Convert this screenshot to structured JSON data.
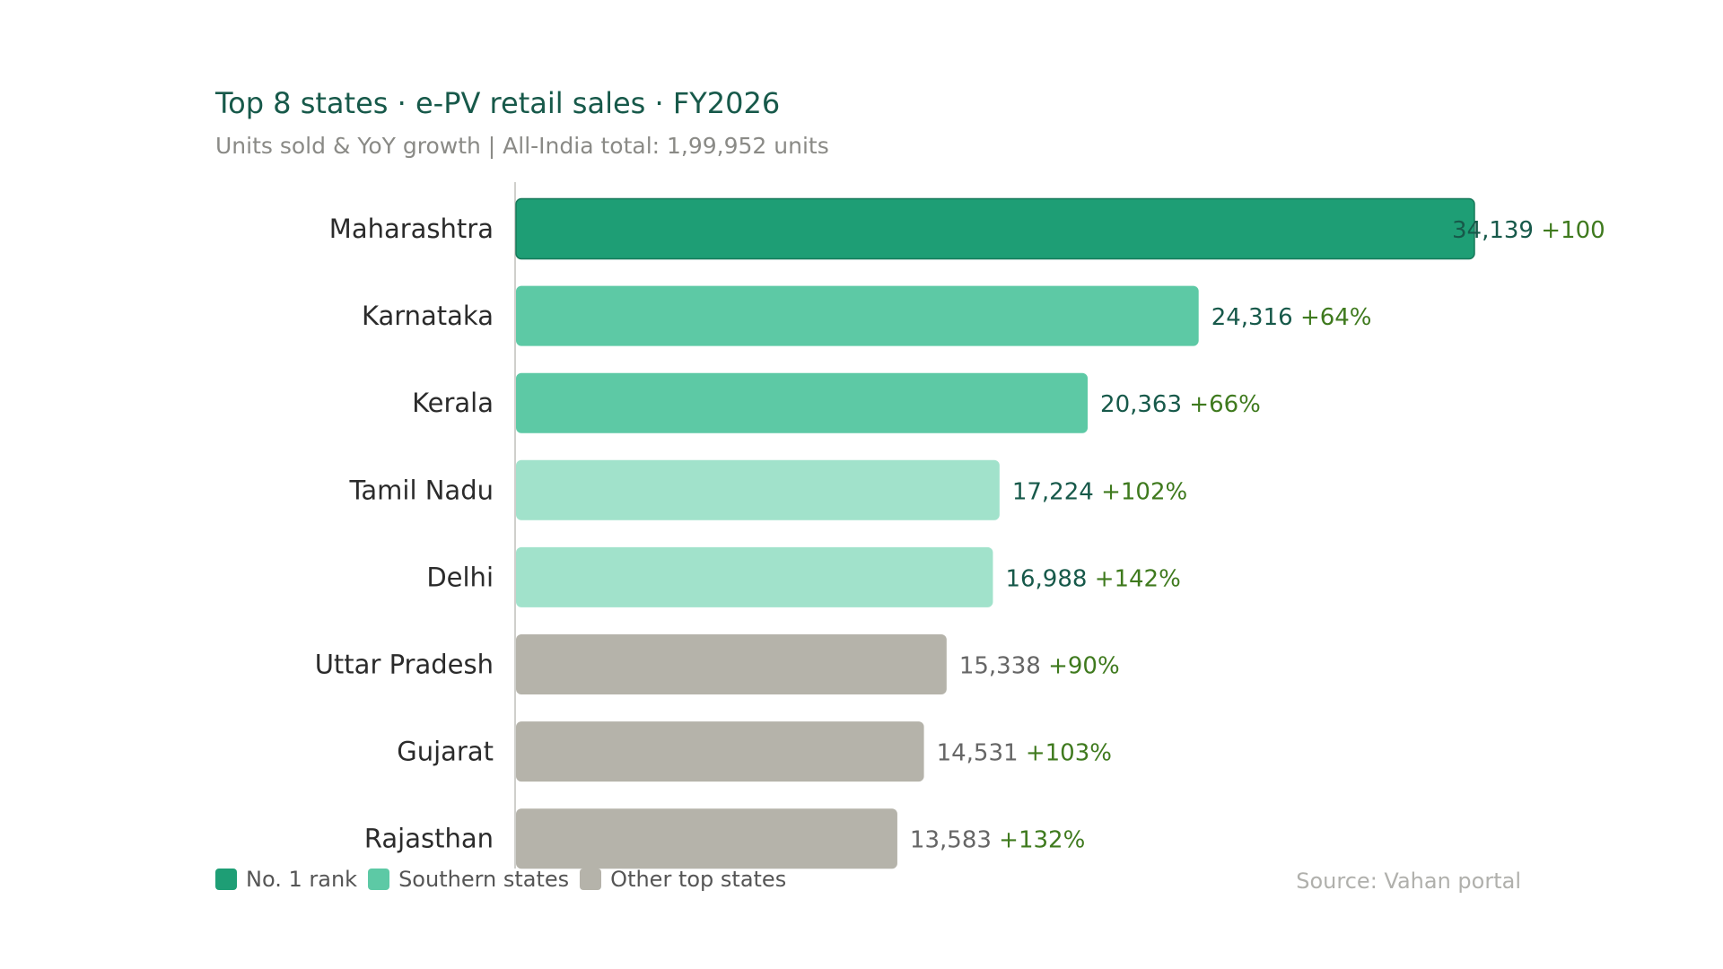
{
  "chart_data": {
    "type": "bar",
    "orientation": "horizontal",
    "title": "Top 8 states · e-PV retail sales · FY2026",
    "subtitle": "Units sold & YoY growth | All-India total: 1,99,952 units",
    "categories": [
      "Maharashtra",
      "Karnataka",
      "Kerala",
      "Tamil Nadu",
      "Delhi",
      "Uttar Pradesh",
      "Gujarat",
      "Rajasthan"
    ],
    "values": [
      34139,
      24316,
      20363,
      17224,
      16988,
      15338,
      14531,
      13583
    ],
    "value_labels": [
      "34,139",
      "24,316",
      "20,363",
      "17,224",
      "16,988",
      "15,338",
      "14,531",
      "13,583"
    ],
    "growth_labels": [
      "+100",
      "+64%",
      "+66%",
      "+102%",
      "+142%",
      "+90%",
      "+103%",
      "+132%"
    ],
    "groups": [
      "rank1",
      "southern",
      "southern",
      "southern2",
      "southern2",
      "other",
      "other",
      "other"
    ],
    "colors": {
      "rank1": "#1e9e75",
      "southern": "#5dc9a5",
      "southern2": "#a1e2cb",
      "other": "#b5b3aa",
      "value_dark": "#17594a",
      "value_gray": "#666666",
      "growth": "#3f7a1e"
    },
    "legend": [
      {
        "label": "No. 1 rank",
        "color": "#1e9e75"
      },
      {
        "label": "Southern states",
        "color": "#5dc9a5"
      },
      {
        "label": "Other top states",
        "color": "#b5b3aa"
      }
    ],
    "legend_position": "bottom-left",
    "source": "Source: Vahan portal",
    "grid": false
  }
}
